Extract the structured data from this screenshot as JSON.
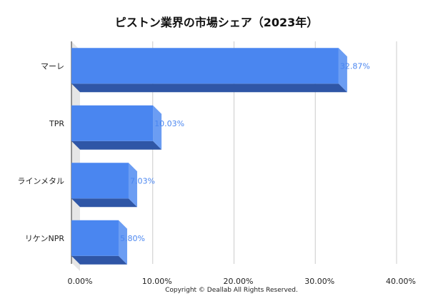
{
  "chart_data": {
    "type": "bar",
    "orientation": "horizontal",
    "title": "ピストン業界の市場シェア（2023年）",
    "categories": [
      "マーレ",
      "TPR",
      "ラインメタル",
      "リケンNPR"
    ],
    "values": [
      32.87,
      10.03,
      7.03,
      5.8
    ],
    "data_labels": [
      "32.87%",
      "10.03%",
      "7.03%",
      "5.80%"
    ],
    "xlim": [
      0,
      40
    ],
    "xticks": [
      0,
      10,
      20,
      30,
      40
    ],
    "xtick_labels": [
      "0.00%",
      "10.00%",
      "20.00%",
      "30.00%",
      "40.00%"
    ],
    "xlabel": "",
    "ylabel": "",
    "grid": true,
    "style": "3d",
    "colors": {
      "bar_front": "#4a86f0",
      "bar_side": "#6b9df3",
      "bar_bottom": "#2f56a6",
      "data_label": "#4a86f0",
      "grid": "#cccccc",
      "floor": "#e6e6e6"
    }
  },
  "footer": {
    "copyright": "Copyright © Deallab All Rights Reserved."
  }
}
